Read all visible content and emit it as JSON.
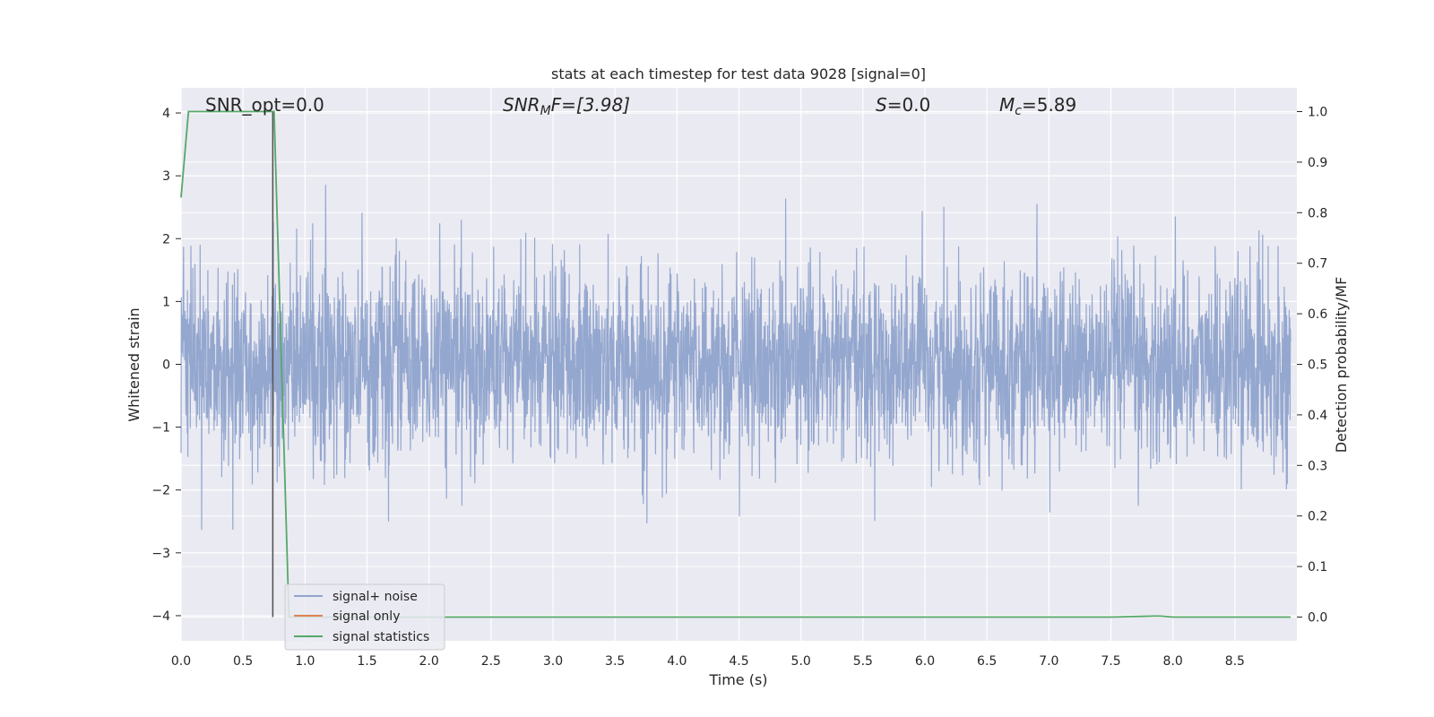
{
  "chart_data": {
    "type": "line",
    "title": "stats at each timestep for test data 9028 [signal=0]",
    "xlabel": "Time (s)",
    "ylabel": "Whitened strain",
    "ylabel_right": "Detection probability/MF",
    "xlim": [
      0.0,
      9.0
    ],
    "ylim": [
      -4.4,
      4.4
    ],
    "ylim_right": [
      -0.047,
      1.047
    ],
    "x_ticks": [
      "0.0",
      "0.5",
      "1.0",
      "1.5",
      "2.0",
      "2.5",
      "3.0",
      "3.5",
      "4.0",
      "4.5",
      "5.0",
      "5.5",
      "6.0",
      "6.5",
      "7.0",
      "7.5",
      "8.0",
      "8.5"
    ],
    "y_ticks": [
      "4",
      "3",
      "2",
      "1",
      "0",
      "−1",
      "−2",
      "−3",
      "−4"
    ],
    "y_right_ticks": [
      "1.0",
      "0.9",
      "0.8",
      "0.7",
      "0.6",
      "0.5",
      "0.4",
      "0.3",
      "0.2",
      "0.1",
      "0.0"
    ],
    "grid": true,
    "legend_position": "lower-left",
    "annotations": {
      "snr_opt": "SNR_opt=0.0",
      "snr_mf_main": "SNR",
      "snr_mf_sub": "M",
      "snr_mf_tail": "F=[3.98]",
      "s_main": "S",
      "s_tail": "=0.0",
      "mc_main": "M",
      "mc_sub": "c",
      "mc_tail": "=5.89"
    },
    "series": [
      {
        "name": "signal+ noise",
        "color": "#8fa3cc",
        "description_range": [
          -4.0,
          4.0
        ],
        "typical_band": [
          -1.6,
          1.6
        ]
      },
      {
        "name": "signal only",
        "color": "#dd8452",
        "values": []
      },
      {
        "name": "signal statistics",
        "color": "#55a868",
        "axis": "right",
        "x": [
          0.0,
          0.06,
          0.12,
          0.2,
          0.4,
          0.6,
          0.73,
          0.75,
          0.87,
          1.0,
          2.0,
          4.0,
          6.0,
          7.5,
          7.85,
          7.9,
          8.0,
          8.5,
          8.95
        ],
        "y": [
          0.83,
          1.0,
          1.0,
          1.0,
          1.0,
          1.0,
          1.0,
          1.0,
          0.0,
          0.0,
          0.0,
          0.0,
          0.0,
          0.0,
          0.002,
          0.002,
          0.0,
          0.0,
          0.0
        ]
      }
    ],
    "marker_line_x": 0.74,
    "colors": {
      "background": "#eaeaf2",
      "grid": "#ffffff",
      "noise": "#8fa3cc",
      "signal": "#dd8452",
      "statistics": "#55a868",
      "marker": "#555555"
    }
  }
}
